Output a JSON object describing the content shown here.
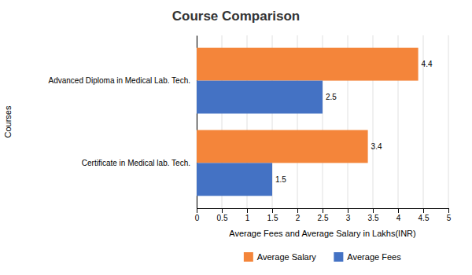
{
  "chart_data": {
    "type": "bar",
    "orientation": "horizontal",
    "title": "Course Comparison",
    "categories": [
      "Certificate in Medical lab. Tech.",
      "Advanced Diploma in Medical Lab. Tech."
    ],
    "series": [
      {
        "name": "Average Salary",
        "color": "#F4853A",
        "values": [
          3.4,
          4.4
        ]
      },
      {
        "name": "Average Fees",
        "color": "#4472C4",
        "values": [
          1.5,
          2.5
        ]
      }
    ],
    "xlabel": "Average Fees and Average  Salary in Lakhs(INR)",
    "ylabel": "Courses",
    "xlim": [
      0,
      5
    ],
    "xticks": [
      0,
      0.5,
      1,
      1.5,
      2,
      2.5,
      3,
      3.5,
      4,
      4.5,
      5
    ],
    "grid": true,
    "data_labels": true,
    "legend": "bottom"
  }
}
